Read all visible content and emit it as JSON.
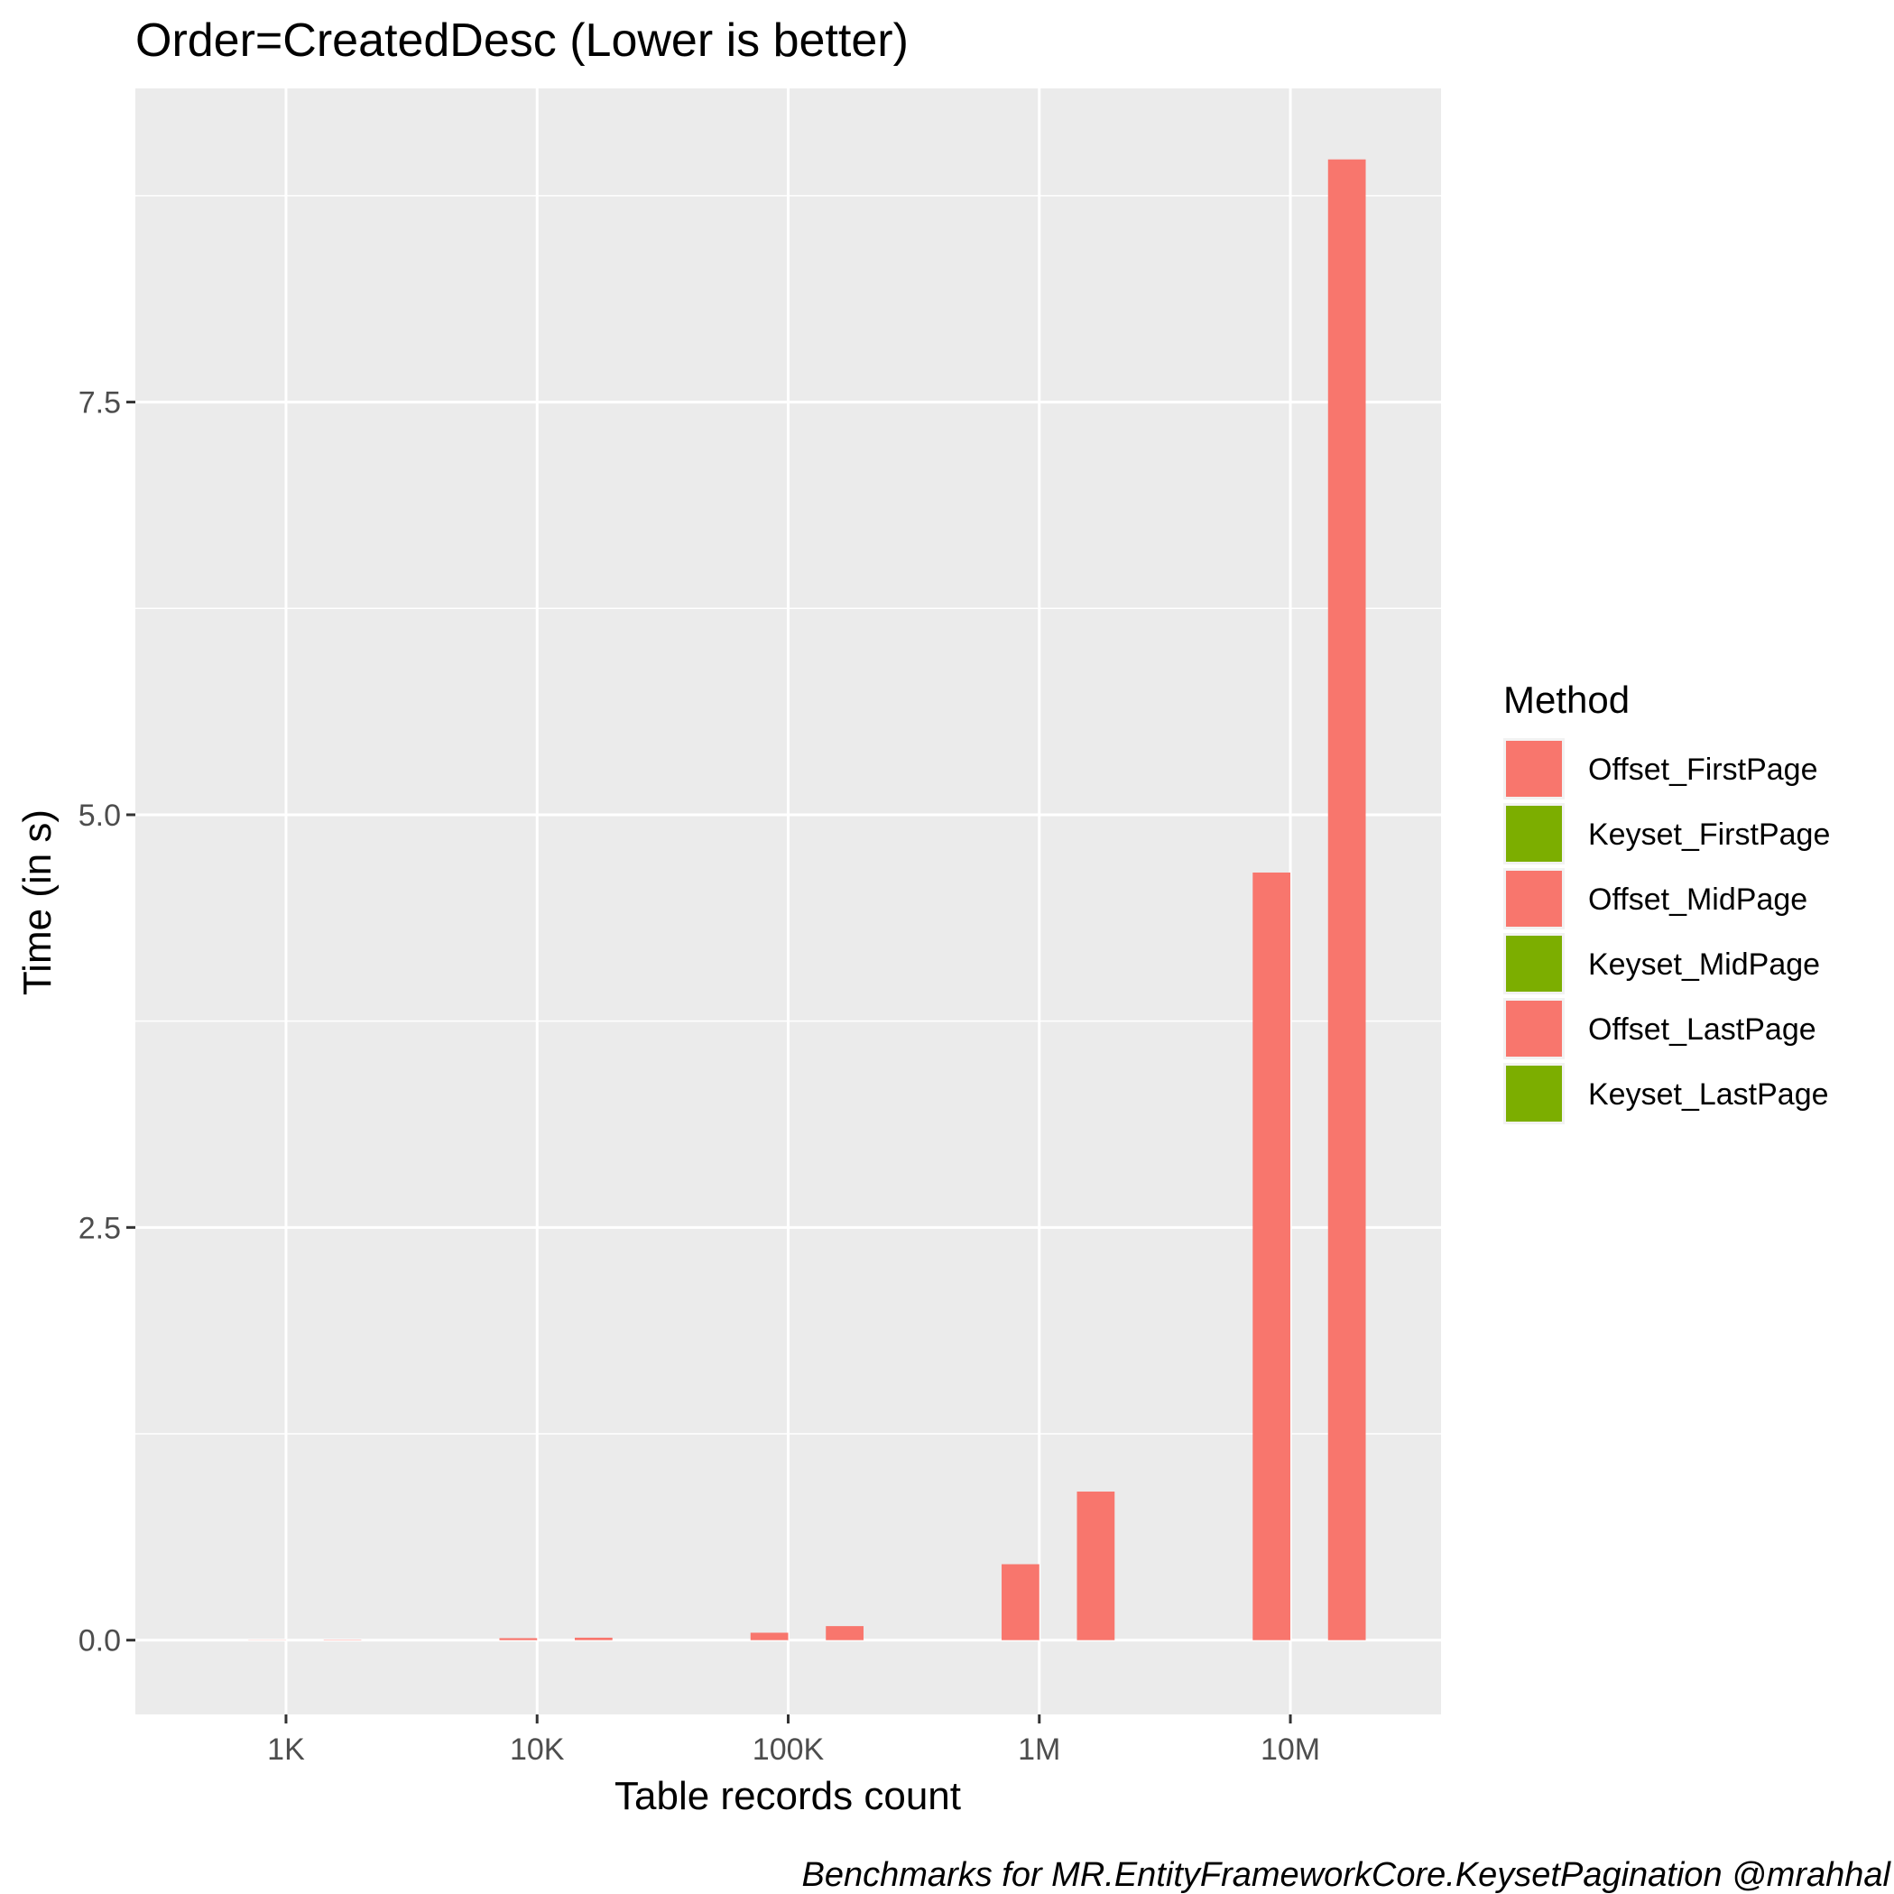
{
  "chart_data": {
    "type": "bar",
    "title": "Order=CreatedDesc (Lower is better)",
    "xlabel": "Table records count",
    "ylabel": "Time (in s)",
    "caption": "Benchmarks for MR.EntityFrameworkCore.KeysetPagination @mrahhal",
    "categories": [
      "1K",
      "10K",
      "100K",
      "1M",
      "10M"
    ],
    "ylim": [
      -0.45,
      9.4
    ],
    "yticks": [
      0.0,
      2.5,
      5.0,
      7.5
    ],
    "ytick_labels": [
      "0.0",
      "2.5",
      "5.0",
      "7.5"
    ],
    "grid": true,
    "legend": {
      "title": "Method",
      "position": "right"
    },
    "series": [
      {
        "name": "Offset_FirstPage",
        "color": "#F8766D",
        "values": [
          0.0,
          0.0,
          0.0,
          0.0,
          0.0
        ]
      },
      {
        "name": "Keyset_FirstPage",
        "color": "#7CAE00",
        "values": [
          0.0,
          0.0,
          0.0,
          0.0,
          0.0
        ]
      },
      {
        "name": "Offset_MidPage",
        "color": "#F8766D",
        "values": [
          0.001,
          0.012,
          0.045,
          0.46,
          4.65
        ]
      },
      {
        "name": "Keyset_MidPage",
        "color": "#7CAE00",
        "values": [
          0.0,
          0.0,
          0.0,
          0.0,
          0.0
        ]
      },
      {
        "name": "Offset_LastPage",
        "color": "#F8766D",
        "values": [
          0.002,
          0.015,
          0.085,
          0.9,
          8.97
        ]
      },
      {
        "name": "Keyset_LastPage",
        "color": "#7CAE00",
        "values": [
          0.0,
          0.0,
          0.0,
          0.0,
          0.0
        ]
      }
    ]
  }
}
